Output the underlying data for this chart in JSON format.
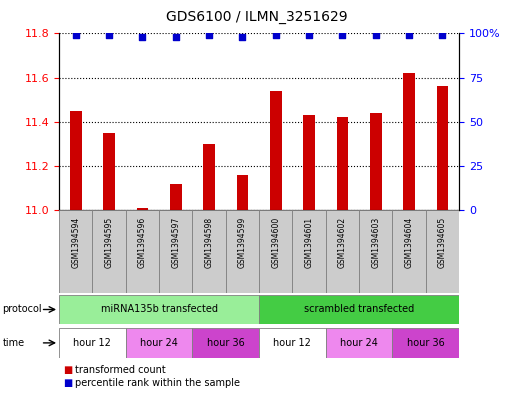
{
  "title": "GDS6100 / ILMN_3251629",
  "samples": [
    "GSM1394594",
    "GSM1394595",
    "GSM1394596",
    "GSM1394597",
    "GSM1394598",
    "GSM1394599",
    "GSM1394600",
    "GSM1394601",
    "GSM1394602",
    "GSM1394603",
    "GSM1394604",
    "GSM1394605"
  ],
  "bar_values": [
    11.45,
    11.35,
    11.01,
    11.12,
    11.3,
    11.16,
    11.54,
    11.43,
    11.42,
    11.44,
    11.62,
    11.56
  ],
  "percentile_values": [
    99,
    99,
    98,
    98,
    99,
    98,
    99,
    99,
    99,
    99,
    99,
    99
  ],
  "bar_color": "#cc0000",
  "dot_color": "#0000cc",
  "ylim_left": [
    11.0,
    11.8
  ],
  "ylim_right": [
    0,
    100
  ],
  "yticks_left": [
    11.0,
    11.2,
    11.4,
    11.6,
    11.8
  ],
  "yticks_right": [
    0,
    25,
    50,
    75,
    100
  ],
  "protocol_groups": [
    {
      "label": "miRNA135b transfected",
      "start": 0,
      "end": 6,
      "color": "#99ee99"
    },
    {
      "label": "scrambled transfected",
      "start": 6,
      "end": 12,
      "color": "#44cc44"
    }
  ],
  "time_groups": [
    {
      "label": "hour 12",
      "start": 0,
      "end": 2,
      "color": "#ffffff"
    },
    {
      "label": "hour 24",
      "start": 2,
      "end": 4,
      "color": "#ee88ee"
    },
    {
      "label": "hour 36",
      "start": 4,
      "end": 6,
      "color": "#cc44cc"
    },
    {
      "label": "hour 12",
      "start": 6,
      "end": 8,
      "color": "#ffffff"
    },
    {
      "label": "hour 24",
      "start": 8,
      "end": 10,
      "color": "#ee88ee"
    },
    {
      "label": "hour 36",
      "start": 10,
      "end": 12,
      "color": "#cc44cc"
    }
  ],
  "legend_items": [
    {
      "label": "transformed count",
      "color": "#cc0000"
    },
    {
      "label": "percentile rank within the sample",
      "color": "#0000cc"
    }
  ],
  "bar_width": 0.35,
  "background_color": "#ffffff",
  "grid_color": "#000000",
  "sample_bg_color": "#cccccc"
}
